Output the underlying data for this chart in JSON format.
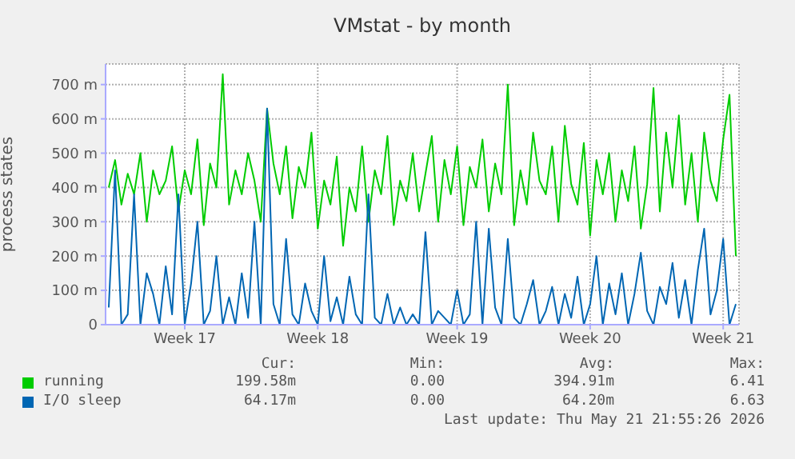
{
  "chart_data": {
    "type": "line",
    "title": "VMstat - by month",
    "ylabel": "process states",
    "categories": [
      null,
      null,
      null,
      null,
      null,
      null,
      null,
      null,
      null,
      null,
      null,
      null,
      "Week 17",
      null,
      null,
      null,
      null,
      null,
      null,
      null,
      null,
      null,
      null,
      null,
      null,
      null,
      null,
      null,
      null,
      null,
      null,
      null,
      null,
      "Week 18",
      null,
      null,
      null,
      null,
      null,
      null,
      null,
      null,
      null,
      null,
      null,
      null,
      null,
      null,
      null,
      null,
      null,
      null,
      null,
      null,
      null,
      "Week 19",
      null,
      null,
      null,
      null,
      null,
      null,
      null,
      null,
      null,
      null,
      null,
      null,
      null,
      null,
      null,
      null,
      null,
      null,
      null,
      null,
      "Week 20",
      null,
      null,
      null,
      null,
      null,
      null,
      null,
      null,
      null,
      null,
      null,
      null,
      null,
      null,
      null,
      null,
      null,
      null,
      null,
      null,
      "Week 21",
      null,
      null
    ],
    "series": [
      {
        "name": "running",
        "color": "#00cc00",
        "values": [
          400,
          480,
          350,
          440,
          380,
          500,
          300,
          450,
          380,
          420,
          520,
          330,
          450,
          380,
          540,
          290,
          470,
          400,
          730,
          350,
          450,
          380,
          500,
          420,
          300,
          630,
          470,
          380,
          520,
          310,
          460,
          400,
          560,
          280,
          420,
          350,
          490,
          230,
          400,
          330,
          520,
          300,
          450,
          380,
          550,
          290,
          420,
          360,
          500,
          330,
          440,
          550,
          300,
          480,
          380,
          520,
          290,
          460,
          400,
          540,
          330,
          470,
          380,
          700,
          290,
          450,
          350,
          560,
          420,
          380,
          520,
          300,
          580,
          410,
          350,
          530,
          260,
          480,
          380,
          500,
          300,
          450,
          360,
          520,
          280,
          410,
          690,
          330,
          560,
          400,
          610,
          350,
          500,
          300,
          560,
          420,
          360,
          540,
          670,
          200
        ]
      },
      {
        "name": "I/O sleep",
        "color": "#0066b3",
        "values": [
          50,
          450,
          0,
          30,
          380,
          0,
          150,
          90,
          0,
          170,
          30,
          380,
          0,
          120,
          300,
          0,
          40,
          200,
          0,
          80,
          0,
          150,
          20,
          300,
          0,
          630,
          60,
          0,
          250,
          30,
          0,
          120,
          40,
          0,
          200,
          10,
          80,
          0,
          140,
          30,
          0,
          380,
          20,
          0,
          90,
          0,
          50,
          0,
          30,
          0,
          270,
          0,
          40,
          20,
          0,
          100,
          0,
          30,
          300,
          0,
          280,
          50,
          0,
          250,
          20,
          0,
          60,
          130,
          0,
          40,
          110,
          0,
          90,
          20,
          140,
          0,
          60,
          200,
          0,
          120,
          30,
          150,
          0,
          90,
          210,
          40,
          0,
          110,
          60,
          180,
          20,
          130,
          0,
          160,
          280,
          30,
          100,
          250,
          0,
          60
        ]
      }
    ],
    "ylim": [
      0,
      760
    ],
    "yticks": [
      0,
      {
        "value": 100,
        "label": "100 m"
      },
      {
        "value": 200,
        "label": "200 m"
      },
      {
        "value": 300,
        "label": "300 m"
      },
      {
        "value": 400,
        "label": "400 m"
      },
      {
        "value": 500,
        "label": "500 m"
      },
      {
        "value": 600,
        "label": "600 m"
      },
      {
        "value": 700,
        "label": "700 m"
      }
    ],
    "grid": true,
    "legend": "bottom",
    "marker": "none",
    "line_style": "solid",
    "annotations": [
      "Cur:",
      "Min:",
      "Avg:",
      "Max:",
      "199.58m",
      "0.00",
      "394.91m",
      "6.41",
      "64.17m",
      "0.00",
      "64.20m",
      "6.63",
      "Last update: Thu May 21 21:55:26 2026"
    ]
  }
}
